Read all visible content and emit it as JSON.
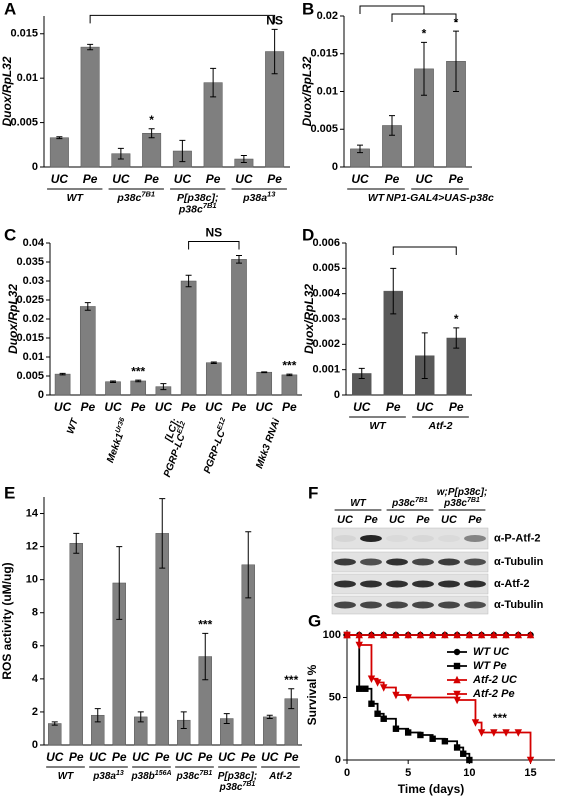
{
  "chart_data": [
    {
      "type": "bar",
      "panel": "A",
      "ylabel": "Duox/RpL32",
      "color": "#7f7f7f",
      "categories": [
        "UC",
        "Pe",
        "UC",
        "Pe",
        "UC",
        "Pe",
        "UC",
        "Pe"
      ],
      "values": [
        0.0033,
        0.0135,
        0.0015,
        0.0038,
        0.0018,
        0.0095,
        0.0009,
        0.013
      ],
      "errors": [
        0.0001,
        0.0003,
        0.0006,
        0.0005,
        0.0012,
        0.0016,
        0.0004,
        0.0025
      ],
      "significance": [
        null,
        null,
        null,
        "*",
        null,
        null,
        null,
        "NS"
      ],
      "brackets": [
        {
          "from": 1,
          "to": 7
        }
      ],
      "groups": [
        {
          "lines": [
            "WT"
          ]
        },
        {
          "lines": [
            "p38c"
          ],
          "sup": "7B1"
        },
        {
          "lines": [
            "P[p38c];",
            "p38c"
          ],
          "sup": "7B1"
        },
        {
          "lines": [
            "p38a"
          ],
          "sup": "13"
        }
      ],
      "ylim": [
        0,
        0.017
      ],
      "yticks": [
        0,
        0.005,
        0.01,
        0.015
      ]
    },
    {
      "type": "bar",
      "panel": "B",
      "ylabel": "Duox/RpL32",
      "color": "#7f7f7f",
      "categories": [
        "UC",
        "Pe",
        "UC",
        "Pe"
      ],
      "values": [
        0.0024,
        0.0055,
        0.013,
        0.014
      ],
      "errors": [
        0.0005,
        0.0013,
        0.0035,
        0.004
      ],
      "significance": [
        null,
        null,
        "*",
        "*"
      ],
      "brackets": [
        {
          "from": 0,
          "to": 2
        },
        {
          "from": 1,
          "to": 3
        }
      ],
      "groups": [
        {
          "lines": [
            "WT"
          ]
        },
        {
          "lines": [
            "NP1-GAL4>UAS-p38c"
          ]
        }
      ],
      "ylim": [
        0,
        0.02
      ],
      "yticks": [
        0,
        0.005,
        0.01,
        0.015,
        0.02
      ]
    },
    {
      "type": "bar",
      "panel": "C",
      "ylabel": "Duox/RpL32",
      "color": "#7f7f7f",
      "categories": [
        "UC",
        "Pe",
        "UC",
        "Pe",
        "UC",
        "Pe",
        "UC",
        "Pe",
        "UC",
        "Pe"
      ],
      "values": [
        0.0055,
        0.0233,
        0.0035,
        0.0037,
        0.0022,
        0.03,
        0.0085,
        0.0357,
        0.006,
        0.0053
      ],
      "errors": [
        0.0002,
        0.001,
        0.0002,
        0.0002,
        0.0008,
        0.0015,
        0.0002,
        0.001,
        0.0001,
        0.0002
      ],
      "significance": [
        null,
        null,
        null,
        "***",
        null,
        null,
        null,
        null,
        null,
        "***"
      ],
      "brackets": [
        {
          "from": 5,
          "to": 7,
          "label": "NS"
        }
      ],
      "groups": [
        {
          "lines": [
            "WT"
          ]
        },
        {
          "lines": [
            "Mekk1"
          ],
          "sup": "Ur36"
        },
        {
          "lines": [
            "[LC];",
            "PGRP-LC"
          ],
          "sup": "E12"
        },
        {
          "lines": [
            "PGRP-LC"
          ],
          "sup": "E12"
        },
        {
          "lines": [
            "Mkk3 RNAi"
          ]
        }
      ],
      "ylim": [
        0,
        0.04
      ],
      "yticks": [
        0,
        0.005,
        0.01,
        0.015,
        0.02,
        0.025,
        0.03,
        0.035,
        0.04
      ]
    },
    {
      "type": "bar",
      "panel": "D",
      "ylabel": "Duox/RpL32",
      "color": "#595959",
      "categories": [
        "UC",
        "Pe",
        "UC",
        "Pe"
      ],
      "values": [
        0.00085,
        0.0041,
        0.00155,
        0.00225
      ],
      "errors": [
        0.0002,
        0.0009,
        0.0009,
        0.0004
      ],
      "significance": [
        null,
        null,
        null,
        "*"
      ],
      "brackets": [
        {
          "from": 1,
          "to": 3
        }
      ],
      "groups": [
        {
          "lines": [
            "WT"
          ]
        },
        {
          "lines": [
            "Atf-2"
          ]
        }
      ],
      "ylim": [
        0,
        0.006
      ],
      "yticks": [
        0,
        0.001,
        0.002,
        0.003,
        0.004,
        0.005,
        0.006
      ]
    },
    {
      "type": "bar",
      "panel": "E",
      "ylabel": "ROS activity (uM/ug)",
      "color": "#808080",
      "categories": [
        "UC",
        "Pe",
        "UC",
        "Pe",
        "UC",
        "Pe",
        "UC",
        "Pe",
        "UC",
        "Pe",
        "UC",
        "Pe"
      ],
      "values": [
        1.3,
        12.2,
        1.8,
        9.8,
        1.7,
        12.8,
        1.5,
        5.35,
        1.6,
        10.9,
        1.7,
        2.8
      ],
      "errors": [
        0.1,
        0.6,
        0.4,
        2.2,
        0.3,
        2.1,
        0.5,
        1.4,
        0.3,
        2.0,
        0.1,
        0.6
      ],
      "significance": [
        null,
        null,
        null,
        null,
        null,
        null,
        null,
        "***",
        null,
        null,
        null,
        "***"
      ],
      "groups": [
        {
          "lines": [
            "WT"
          ]
        },
        {
          "lines": [
            "p38a"
          ],
          "sup": "13"
        },
        {
          "lines": [
            "p38b"
          ],
          "sup": "156A"
        },
        {
          "lines": [
            "p38c"
          ],
          "sup": "7B1"
        },
        {
          "lines": [
            "P[p38c];",
            "p38c"
          ],
          "sup": "7B1"
        },
        {
          "lines": [
            "Atf-2"
          ]
        }
      ],
      "ylim": [
        0,
        15
      ],
      "yticks": [
        0,
        2,
        4,
        6,
        8,
        10,
        12,
        14
      ]
    },
    {
      "type": "line",
      "panel": "G",
      "ylabel": "Survival %",
      "xlabel": "Time (days)",
      "annotation": "***",
      "legend": "upper right",
      "series": [
        {
          "name": "WT UC",
          "color": "#000000",
          "marker": "circle",
          "x": [
            0,
            1,
            2,
            3,
            4,
            5,
            6,
            7,
            8,
            9,
            10,
            11,
            12,
            13,
            14,
            15
          ],
          "values": [
            100,
            100,
            100,
            100,
            100,
            100,
            100,
            100,
            100,
            100,
            100,
            100,
            100,
            100,
            100,
            100
          ]
        },
        {
          "name": "WT Pe",
          "color": "#000000",
          "marker": "square",
          "x": [
            0,
            1,
            1.5,
            2,
            2.5,
            3,
            4,
            5,
            6,
            7,
            8,
            9,
            9.5,
            10
          ],
          "values": [
            100,
            57,
            57,
            45,
            37,
            33,
            25,
            22,
            20,
            17,
            15,
            10,
            5,
            0
          ]
        },
        {
          "name": "Atf-2 UC",
          "color": "#d40000",
          "marker": "triangle",
          "x": [
            0,
            1,
            2,
            3,
            4,
            5,
            6,
            7,
            8,
            9,
            10,
            11,
            12,
            13,
            14,
            15
          ],
          "values": [
            100,
            100,
            100,
            100,
            100,
            100,
            100,
            100,
            100,
            100,
            100,
            100,
            100,
            100,
            100,
            100
          ]
        },
        {
          "name": "Atf-2 Pe",
          "color": "#d40000",
          "marker": "triangle-down",
          "x": [
            0,
            1,
            2,
            2.5,
            3,
            4,
            5,
            9,
            10.5,
            11,
            12,
            13,
            14,
            15
          ],
          "values": [
            100,
            92,
            65,
            62,
            58,
            52,
            50,
            48,
            30,
            22,
            22,
            22,
            22,
            0
          ]
        }
      ],
      "xlim": [
        0,
        17
      ],
      "xticks": [
        0,
        5,
        10,
        15
      ],
      "ylim": [
        0,
        100
      ],
      "yticks": [
        0,
        50,
        100
      ]
    }
  ],
  "blot": {
    "panel": "F",
    "groups": [
      {
        "lines": [
          "WT"
        ]
      },
      {
        "lines": [
          "p38c"
        ],
        "sup": "7B1"
      },
      {
        "lines": [
          "w;P[p38c];",
          "p38c"
        ],
        "sup": "7B1"
      }
    ],
    "lanes": [
      "UC",
      "Pe",
      "UC",
      "Pe",
      "UC",
      "Pe"
    ],
    "rows": [
      "α-P-Atf-2",
      "α-Tubulin",
      "α-Atf-2",
      "α-Tubulin"
    ]
  }
}
